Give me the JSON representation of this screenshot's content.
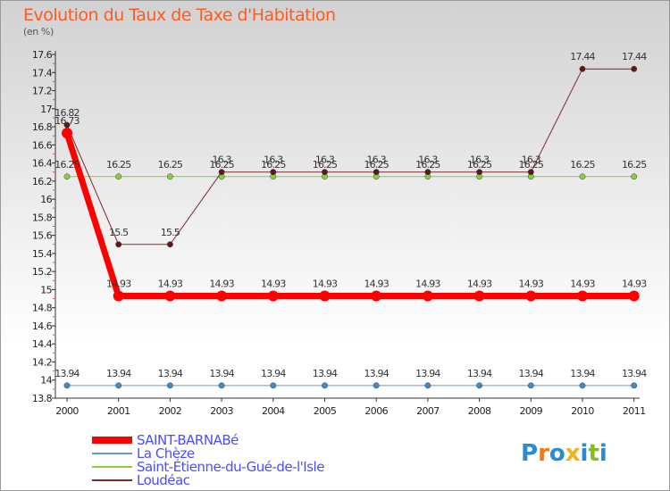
{
  "header": {
    "title": "Evolution du Taux de Taxe d'Habitation",
    "unit": "(en %)"
  },
  "logo": {
    "letters": [
      "P",
      "r",
      "o",
      "x",
      "i",
      "t",
      "i"
    ]
  },
  "chart_data": {
    "type": "line",
    "title": "Evolution du Taux de Taxe d'Habitation",
    "ylabel": "(en %)",
    "xlabel": "",
    "x": [
      "2000",
      "2001",
      "2002",
      "2003",
      "2004",
      "2005",
      "2006",
      "2007",
      "2008",
      "2009",
      "2010",
      "2011"
    ],
    "ylim": [
      13.8,
      17.6
    ],
    "yticks": [
      "13.8",
      "14",
      "14.2",
      "14.4",
      "14.6",
      "14.8",
      "15",
      "15.2",
      "15.4",
      "15.6",
      "15.8",
      "16",
      "16.2",
      "16.4",
      "16.6",
      "16.8",
      "17",
      "17.2",
      "17.4",
      "17.6"
    ],
    "grid": false,
    "legend": "bottom-left",
    "series": [
      {
        "name": "Saint-Étienne-du-Gué-de-l'Isle",
        "color": "#88cc44",
        "pointColor": "#88cc44",
        "width": 1,
        "values": [
          16.25,
          16.25,
          16.25,
          16.25,
          16.25,
          16.25,
          16.25,
          16.25,
          16.25,
          16.25,
          16.25,
          16.25
        ],
        "labels": [
          "16.25",
          "16.25",
          "16.25",
          "16.25",
          "16.25",
          "16.25",
          "16.25",
          "16.25",
          "16.25",
          "16.25",
          "16.25",
          "16.25"
        ]
      },
      {
        "name": "Loudéac",
        "color": "#7a2a2a",
        "pointColor": "#5a1a1a",
        "width": 1,
        "values": [
          16.82,
          15.5,
          15.5,
          16.3,
          16.3,
          16.3,
          16.3,
          16.3,
          16.3,
          16.3,
          17.44,
          17.44
        ],
        "labels": [
          "16.82",
          "15.5",
          "15.5",
          "16.3",
          "16.3",
          "16.3",
          "16.3",
          "16.3",
          "16.3",
          "16.3",
          "17.44",
          "17.44"
        ]
      },
      {
        "name": "La Chèze",
        "color": "#6699cc",
        "pointColor": "#4488cc",
        "width": 1,
        "values": [
          13.94,
          13.94,
          13.94,
          13.94,
          13.94,
          13.94,
          13.94,
          13.94,
          13.94,
          13.94,
          13.94,
          13.94
        ],
        "labels": [
          "13.94",
          "13.94",
          "13.94",
          "13.94",
          "13.94",
          "13.94",
          "13.94",
          "13.94",
          "13.94",
          "13.94",
          "13.94",
          "13.94"
        ]
      },
      {
        "name": "SAINT-BARNABé",
        "color": "#ff0000",
        "pointColor": "#ff0000",
        "width": 7,
        "values": [
          16.73,
          14.93,
          14.93,
          14.93,
          14.93,
          14.93,
          14.93,
          14.93,
          14.93,
          14.93,
          14.93,
          14.93
        ],
        "labels": [
          "16.73",
          "14.93",
          "14.93",
          "14.93",
          "14.93",
          "14.93",
          "14.93",
          "14.93",
          "14.93",
          "14.93",
          "14.93",
          "14.93"
        ]
      }
    ],
    "legend_order": [
      "SAINT-BARNABé",
      "La Chèze",
      "Saint-Étienne-du-Gué-de-l'Isle",
      "Loudéac"
    ]
  }
}
